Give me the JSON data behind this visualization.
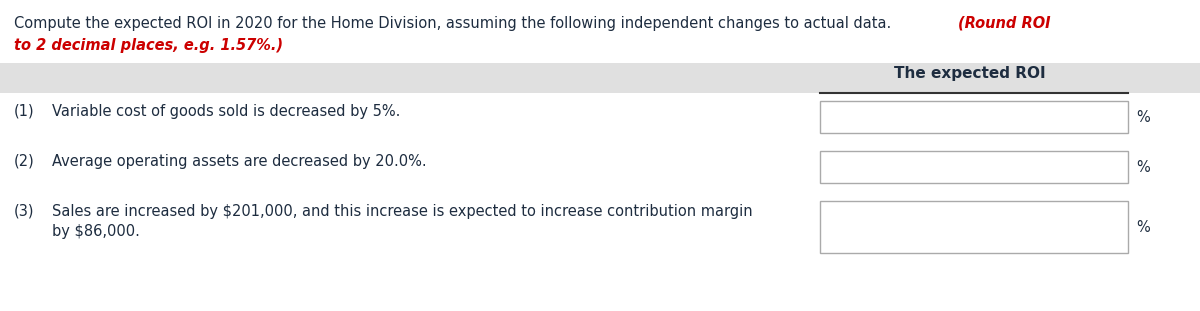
{
  "title_black": "Compute the expected ROI in 2020 for the Home Division, assuming the following independent changes to actual data. ",
  "title_red_1": "(Round ROI",
  "title_red_2": "to 2 decimal places, e.g. 1.57%.)",
  "header_text": "The expected ROI",
  "rows": [
    {
      "number": "(1)",
      "text": "Variable cost of goods sold is decreased by 5%.",
      "text2": null
    },
    {
      "number": "(2)",
      "text": "Average operating assets are decreased by 20.0%.",
      "text2": null
    },
    {
      "number": "(3)",
      "text": "Sales are increased by $201,000, and this increase is expected to increase contribution margin",
      "text2": "by $86,000."
    }
  ],
  "bg_color": "#ffffff",
  "header_row_color": "#e0e0e0",
  "box_color": "#ffffff",
  "box_edge_color": "#aaaaaa",
  "text_color": "#1e2d40",
  "red_color": "#cc0000",
  "header_color": "#1e2d40",
  "font_size_title": 10.5,
  "font_size_body": 10.5,
  "font_size_header": 11.0
}
